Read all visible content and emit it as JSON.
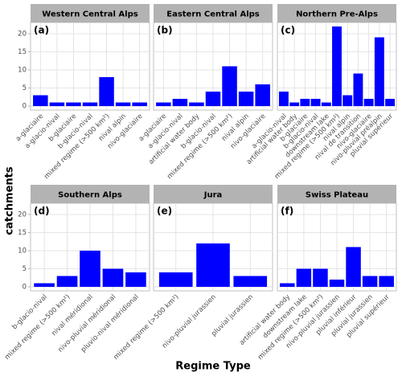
{
  "y_label": "catchments",
  "x_label": "Regime Type",
  "chart_data": [
    {
      "type": "bar",
      "title": "Western Central Alps",
      "panel_label": "(a)",
      "color": "#0000ff",
      "categories": [
        "a-glaciaire",
        "a-glacio-nival",
        "b-glaciaire",
        "b-glacio-nival",
        "mixed regime (>500 km²)",
        "nival alpin",
        "nivo-glaciaire"
      ],
      "values": [
        3,
        1,
        1,
        1,
        8,
        1,
        1
      ],
      "ylim": [
        -1.1,
        23.1
      ],
      "yticks": [
        0,
        5,
        10,
        15,
        20
      ],
      "grid": true
    },
    {
      "type": "bar",
      "title": "Eastern Central Alps",
      "panel_label": "(b)",
      "color": "#0000ff",
      "categories": [
        "a-glaciaire",
        "a-glacio-nival",
        "artificial water body",
        "b-glacio-nival",
        "mixed regime (>500 km²)",
        "nival alpin",
        "nivo-glaciaire"
      ],
      "values": [
        1,
        2,
        1,
        4,
        11,
        4,
        6
      ],
      "ylim": [
        -1.1,
        23.1
      ],
      "yticks": [
        0,
        5,
        10,
        15,
        20
      ],
      "grid": true
    },
    {
      "type": "bar",
      "title": "Northern Pre-Alps",
      "panel_label": "(c)",
      "color": "#0000ff",
      "categories": [
        "a-glacio-nival",
        "artificial water body",
        "b-glaciaire",
        "b-glacio-nival",
        "downstream lake",
        "mixed regime (>500 km²)",
        "nival alpin",
        "nival de transition",
        "nivo-glaciaire",
        "nivo-pluvial préalpin",
        "pluvial supérieur"
      ],
      "values": [
        4,
        1,
        2,
        2,
        1,
        22,
        3,
        9,
        2,
        19,
        2
      ],
      "ylim": [
        -1.1,
        23.1
      ],
      "yticks": [
        0,
        5,
        10,
        15,
        20
      ],
      "grid": true
    },
    {
      "type": "bar",
      "title": "Southern Alps",
      "panel_label": "(d)",
      "color": "#0000ff",
      "categories": [
        "b-glacio-nival",
        "mixed regime (>500 km²)",
        "nival méridional",
        "nivo-pluvial méridional",
        "pluvio-nival méridional"
      ],
      "values": [
        1,
        3,
        10,
        5,
        4
      ],
      "ylim": [
        -1.1,
        23.1
      ],
      "yticks": [
        0,
        5,
        10,
        15,
        20
      ],
      "grid": true
    },
    {
      "type": "bar",
      "title": "Jura",
      "panel_label": "(e)",
      "color": "#0000ff",
      "categories": [
        "mixed regime (>500 km²)",
        "nivo-pluvial jurassien",
        "pluvial jurassien"
      ],
      "values": [
        4,
        12,
        3
      ],
      "ylim": [
        -1.1,
        23.1
      ],
      "yticks": [
        0,
        5,
        10,
        15,
        20
      ],
      "grid": true
    },
    {
      "type": "bar",
      "title": "Swiss Plateau",
      "panel_label": "(f)",
      "color": "#0000ff",
      "categories": [
        "artificial water body",
        "downstream lake",
        "mixed regime (>500 km²)",
        "nivo-pluvial jurassien",
        "pluvial inférieur",
        "pluvial jurassien",
        "pluvial supérieur"
      ],
      "values": [
        1,
        5,
        5,
        2,
        11,
        3,
        3
      ],
      "ylim": [
        -1.1,
        23.1
      ],
      "yticks": [
        0,
        5,
        10,
        15,
        20
      ],
      "grid": true
    }
  ]
}
